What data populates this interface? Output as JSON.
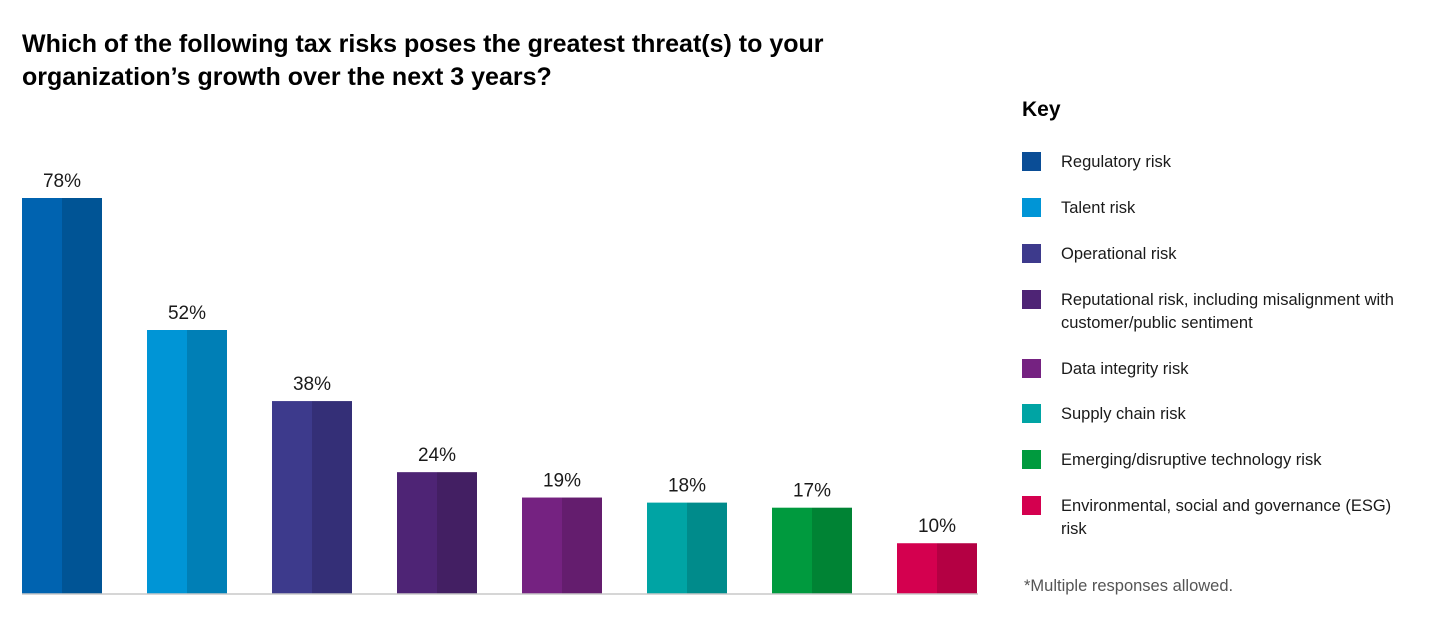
{
  "chart_data": {
    "type": "bar",
    "title": "Which of the following tax risks poses the greatest threat(s) to your organization’s growth over the next 3 years?",
    "categories": [
      "Regulatory risk",
      "Talent risk",
      "Operational risk",
      "Reputational risk, including misalignment with customer/public sentiment",
      "Data integrity risk",
      "Supply chain risk",
      "Emerging/disruptive technology risk",
      "Environmental, social and governance (ESG) risk"
    ],
    "values": [
      78,
      52,
      38,
      24,
      19,
      18,
      17,
      10
    ],
    "value_labels": [
      "78%",
      "52%",
      "38%",
      "24%",
      "19%",
      "18%",
      "17%",
      "10%"
    ],
    "colors": [
      "#0063b0",
      "#0095d6",
      "#3d3a8c",
      "#4e2475",
      "#752281",
      "#00a4a4",
      "#009a3e",
      "#d4004f"
    ],
    "colors_dark": [
      "#005495",
      "#007fb6",
      "#342f77",
      "#431f63",
      "#641d6e",
      "#008b8b",
      "#008334",
      "#b40043"
    ],
    "ylim": [
      0,
      78
    ],
    "grid": false,
    "legend_position": "right"
  },
  "key": {
    "title": "Key",
    "items": [
      {
        "label": "Regulatory risk",
        "color": "#0a4d96"
      },
      {
        "label": "Talent risk",
        "color": "#0095d6"
      },
      {
        "label": "Operational risk",
        "color": "#3d3a8c"
      },
      {
        "label": "Reputational risk, including misalignment with customer/public sentiment",
        "color": "#4e2475"
      },
      {
        "label": "Data integrity risk",
        "color": "#752281"
      },
      {
        "label": "Supply chain risk",
        "color": "#00a4a4"
      },
      {
        "label": "Emerging/disruptive technology risk",
        "color": "#009a3e"
      },
      {
        "label": "Environmental, social and governance (ESG) risk",
        "color": "#d4004f"
      }
    ]
  },
  "footnote": "*Multiple responses allowed."
}
